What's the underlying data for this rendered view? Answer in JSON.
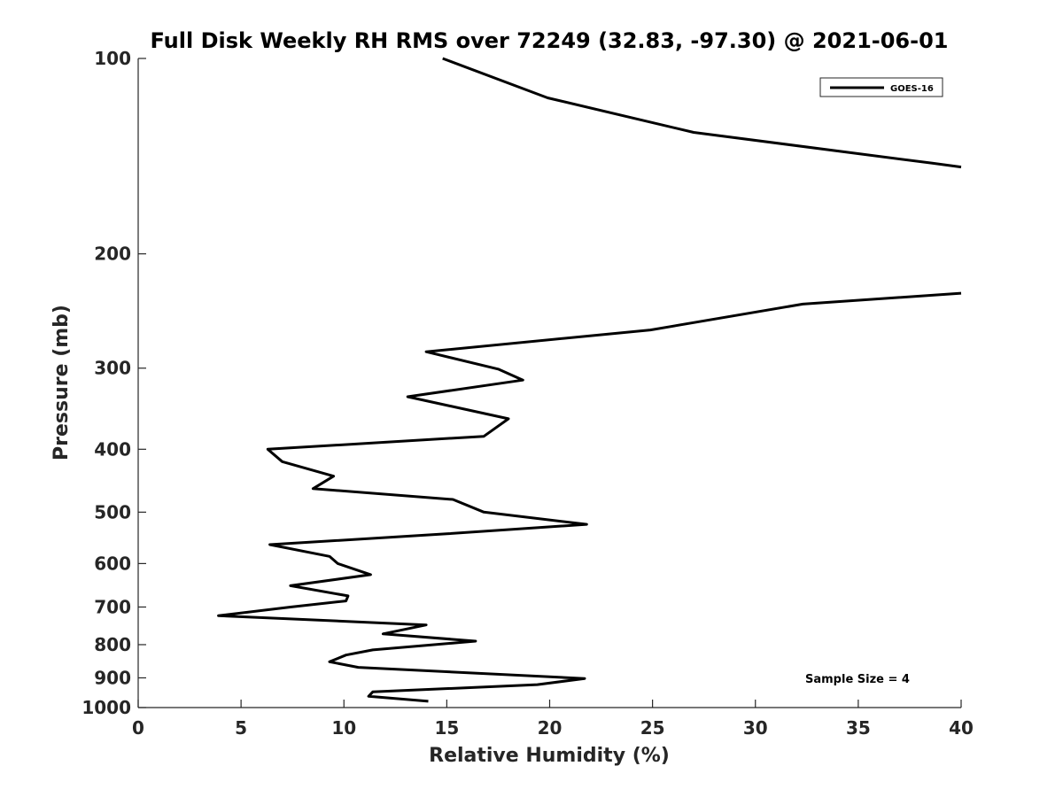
{
  "chart_data": {
    "type": "line",
    "title": "Full Disk Weekly RH RMS over 72249 (32.83, -97.30) @ 2021-06-01",
    "xlabel": "Relative Humidity (%)",
    "ylabel": "Pressure (mb)",
    "xlim": [
      0,
      40
    ],
    "ylim": [
      100,
      1000
    ],
    "y_scale": "log",
    "y_reversed": true,
    "x_ticks": [
      "0",
      "5",
      "10",
      "15",
      "20",
      "25",
      "30",
      "35",
      "40"
    ],
    "y_ticks": [
      "100",
      "200",
      "300",
      "400",
      "500",
      "600",
      "700",
      "800",
      "900",
      "1000"
    ],
    "grid": false,
    "legend_position": "top-right",
    "annotation": "Sample Size = 4",
    "series": [
      {
        "name": "GOES-16",
        "color": "#000000",
        "points": [
          [
            14.8,
            100
          ],
          [
            19.9,
            115
          ],
          [
            27.0,
            130
          ],
          [
            38.6,
            145
          ],
          [
            40.0,
            147
          ],
          [
            null,
            160
          ],
          [
            40.0,
            230
          ],
          [
            32.3,
            239
          ],
          [
            24.9,
            262
          ],
          [
            14.0,
            283
          ],
          [
            17.5,
            301
          ],
          [
            18.7,
            313
          ],
          [
            13.1,
            332
          ],
          [
            18.0,
            359
          ],
          [
            16.8,
            382
          ],
          [
            6.3,
            400
          ],
          [
            7.0,
            418
          ],
          [
            9.5,
            440
          ],
          [
            8.5,
            460
          ],
          [
            15.3,
            478
          ],
          [
            16.8,
            500
          ],
          [
            21.8,
            522
          ],
          [
            15.0,
            540
          ],
          [
            6.4,
            561
          ],
          [
            9.3,
            585
          ],
          [
            9.7,
            600
          ],
          [
            11.3,
            624
          ],
          [
            7.4,
            649
          ],
          [
            10.2,
            673
          ],
          [
            10.1,
            685
          ],
          [
            7.4,
            700
          ],
          [
            3.9,
            722
          ],
          [
            14.0,
            746
          ],
          [
            11.9,
            770
          ],
          [
            16.4,
            790
          ],
          [
            11.4,
            815
          ],
          [
            10.1,
            830
          ],
          [
            9.3,
            850
          ],
          [
            10.7,
            867
          ],
          [
            21.7,
            902
          ],
          [
            19.4,
            922
          ],
          [
            11.4,
            946
          ],
          [
            11.2,
            961
          ],
          [
            14.1,
            978
          ]
        ]
      }
    ]
  }
}
